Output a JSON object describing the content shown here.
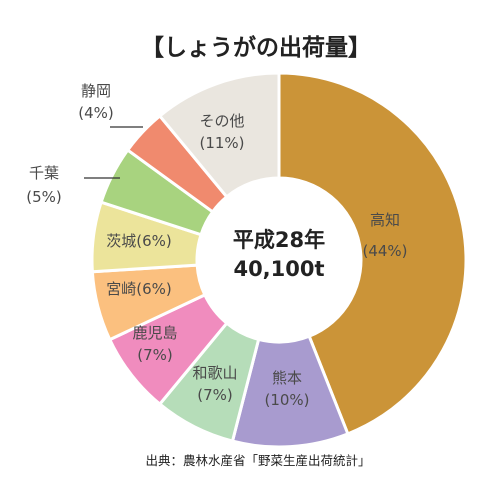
{
  "chart_data": {
    "type": "pie",
    "title": "【しょうがの出荷量】",
    "center": {
      "line1": "平成28年",
      "line2": "40,100t"
    },
    "slices": [
      {
        "name": "高知",
        "percent_label": "(44%)",
        "value": 44,
        "color": "#CB9438"
      },
      {
        "name": "熊本",
        "percent_label": "(10%)",
        "value": 10,
        "color": "#A89BCF"
      },
      {
        "name": "和歌山",
        "percent_label": "(7%)",
        "value": 7,
        "color": "#B6DDB9"
      },
      {
        "name": "鹿児島",
        "percent_label": "(7%)",
        "value": 7,
        "color": "#F08CBE"
      },
      {
        "name": "宮崎",
        "percent_label": "(6%)",
        "value": 6,
        "color": "#FBC07F"
      },
      {
        "name": "茨城",
        "percent_label": "(6%)",
        "value": 6,
        "color": "#ECE49B"
      },
      {
        "name": "千葉",
        "percent_label": "(5%)",
        "value": 5,
        "color": "#A8D37F"
      },
      {
        "name": "静岡",
        "percent_label": "(4%)",
        "value": 4,
        "color": "#F08A6E"
      },
      {
        "name": "その他",
        "percent_label": "(11%)",
        "value": 11,
        "color": "#EAE6DF"
      }
    ],
    "source": "出典：農林水産省「野菜生産出荷統計」"
  }
}
